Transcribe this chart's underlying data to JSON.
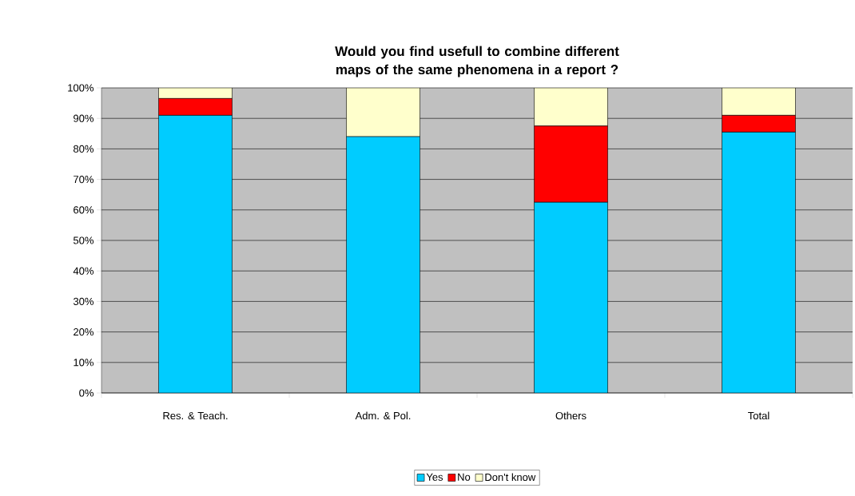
{
  "chart_data": {
    "type": "bar",
    "stacked": true,
    "title": "Would you find usefull to combine different maps of the same phenomena in a report ?",
    "categories": [
      "Res. & Teach.",
      "Adm. & Pol.",
      "Others",
      "Total"
    ],
    "series": [
      {
        "name": "Yes",
        "color": "#00ccff",
        "values": [
          91,
          84,
          62.5,
          85.5
        ]
      },
      {
        "name": "No",
        "color": "#ff0000",
        "values": [
          5.5,
          0,
          25,
          5.5
        ]
      },
      {
        "name": "Don't know",
        "color": "#ffffcc",
        "values": [
          3.5,
          16,
          12.5,
          9
        ]
      }
    ],
    "ylim": [
      0,
      100
    ],
    "yticks": [
      {
        "value": 0,
        "label": "0%"
      },
      {
        "value": 10,
        "label": "10%"
      },
      {
        "value": 20,
        "label": "20%"
      },
      {
        "value": 30,
        "label": "30%"
      },
      {
        "value": 40,
        "label": "40%"
      },
      {
        "value": 50,
        "label": "50%"
      },
      {
        "value": 60,
        "label": "60%"
      },
      {
        "value": 70,
        "label": "70%"
      },
      {
        "value": 80,
        "label": "80%"
      },
      {
        "value": 90,
        "label": "90%"
      },
      {
        "value": 100,
        "label": "100%"
      }
    ],
    "grid": "y",
    "legend": "bottom"
  }
}
